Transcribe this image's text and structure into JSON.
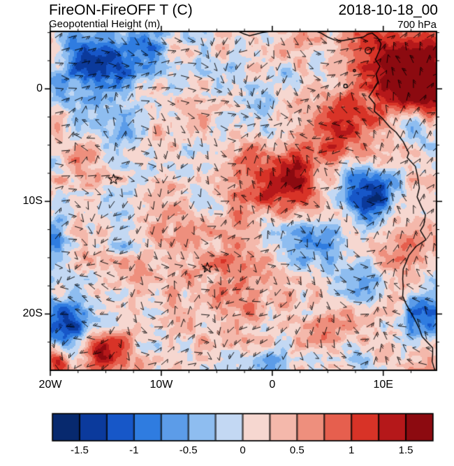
{
  "header": {
    "title_left": "FireON-FireOFF T (C)",
    "title_right": "2018-10-18_00",
    "subtitle_left": "Geopotential Height (m)",
    "subtitle_right": "700 hPa"
  },
  "axes": {
    "x_ticks": [
      {
        "label": "20W",
        "lon": -20
      },
      {
        "label": "10W",
        "lon": -10
      },
      {
        "label": "0",
        "lon": 0
      },
      {
        "label": "10E",
        "lon": 10
      }
    ],
    "y_ticks": [
      {
        "label": "0",
        "lat": 0
      },
      {
        "label": "10S",
        "lat": -10
      },
      {
        "label": "20S",
        "lat": -20
      }
    ]
  },
  "colorbar": {
    "tick_labels": [
      "-1.5",
      "-1",
      "-0.5",
      "0",
      "0.5",
      "1",
      "1.5"
    ],
    "levels": [
      -1.5,
      -1.25,
      -1,
      -0.75,
      -0.5,
      -0.25,
      0,
      0.25,
      0.5,
      0.75,
      1,
      1.25,
      1.5
    ],
    "colors": [
      "#07296e",
      "#0b3a9c",
      "#1757c8",
      "#2f7ce0",
      "#5c9ce8",
      "#8ebdf0",
      "#c3d8f3",
      "#f6d7d0",
      "#f4b8ab",
      "#ee8f7d",
      "#e65f4e",
      "#d83327",
      "#b5181a",
      "#8c0a10"
    ]
  },
  "markers": [
    {
      "symbol": "star",
      "lon": -14.3,
      "lat": -8.05
    },
    {
      "symbol": "star",
      "lon": -5.85,
      "lat": -15.9
    }
  ],
  "map": {
    "coastline_segments": [
      [
        [
          -3.1,
          5.12
        ],
        [
          -2.6,
          4.9
        ],
        [
          -2.05,
          4.72
        ],
        [
          -1.5,
          4.85
        ],
        [
          -0.9,
          5.0
        ],
        [
          -0.3,
          5.08
        ],
        [
          0.35,
          5.15
        ]
      ],
      [
        [
          3.9,
          5.12
        ],
        [
          4.4,
          4.95
        ],
        [
          5.0,
          4.6
        ],
        [
          5.6,
          4.35
        ],
        [
          6.3,
          4.28
        ],
        [
          7.0,
          4.4
        ],
        [
          7.6,
          4.52
        ],
        [
          8.2,
          4.6
        ],
        [
          8.6,
          4.85
        ],
        [
          9.0,
          4.95
        ],
        [
          9.5,
          4.55
        ],
        [
          9.8,
          4.0
        ],
        [
          9.65,
          3.4
        ],
        [
          9.3,
          2.6
        ],
        [
          9.7,
          2.0
        ],
        [
          9.35,
          1.3
        ],
        [
          9.55,
          0.6
        ],
        [
          9.3,
          0.2
        ],
        [
          8.9,
          -0.4
        ],
        [
          8.7,
          -0.7
        ],
        [
          9.25,
          -1.35
        ],
        [
          9.2,
          -2.0
        ],
        [
          9.9,
          -2.6
        ],
        [
          10.6,
          -3.4
        ],
        [
          11.15,
          -3.85
        ],
        [
          11.8,
          -4.7
        ],
        [
          12.3,
          -5.7
        ],
        [
          12.15,
          -6.1
        ],
        [
          12.9,
          -6.9
        ],
        [
          13.1,
          -7.8
        ],
        [
          13.25,
          -8.8
        ],
        [
          13.05,
          -9.6
        ],
        [
          13.45,
          -10.5
        ],
        [
          13.8,
          -11.2
        ],
        [
          13.65,
          -12.1
        ],
        [
          13.35,
          -12.6
        ],
        [
          13.85,
          -13.4
        ],
        [
          12.95,
          -14.0
        ],
        [
          12.3,
          -14.8
        ],
        [
          12.1,
          -15.3
        ],
        [
          11.8,
          -16.0
        ],
        [
          11.75,
          -16.9
        ],
        [
          11.8,
          -17.6
        ],
        [
          11.75,
          -18.4
        ],
        [
          12.05,
          -19.1
        ],
        [
          12.5,
          -19.9
        ],
        [
          12.9,
          -20.6
        ],
        [
          13.25,
          -21.3
        ],
        [
          13.5,
          -22.0
        ],
        [
          14.05,
          -22.6
        ],
        [
          14.45,
          -23.0
        ],
        [
          14.45,
          -23.6
        ],
        [
          14.4,
          -24.2
        ],
        [
          14.55,
          -24.7
        ],
        [
          14.7,
          -25.1
        ]
      ]
    ],
    "islands": [
      {
        "lon": 8.65,
        "lat": 3.4,
        "r": 0.28
      },
      {
        "lon": 7.4,
        "lat": 1.62,
        "r": 0.1
      },
      {
        "lon": 6.6,
        "lat": 0.25,
        "r": 0.16
      }
    ]
  },
  "chart_data": {
    "type": "heatmap",
    "title": "FireON-FireOFF T (C)",
    "overlay_label": "Geopotential Height (m)",
    "datetime": "2018-10-18_00",
    "pressure_level": "700 hPa",
    "units": "C",
    "lon_range": [
      -20,
      14.8
    ],
    "lat_range": [
      -25,
      5.1
    ],
    "x_tick_labels": [
      "20W",
      "10W",
      "0",
      "10E"
    ],
    "y_tick_labels": [
      "0",
      "10S",
      "20S"
    ],
    "contour_levels": [
      -1.5,
      -1.25,
      -1,
      -0.75,
      -0.5,
      -0.25,
      0,
      0.25,
      0.5,
      0.75,
      1,
      1.25,
      1.5
    ],
    "legend_position": "bottom",
    "overlays": [
      "wind-barbs",
      "coastline",
      "star-markers"
    ],
    "approx_anomaly_centers": [
      {
        "lon": 11.8,
        "lat": 2.8,
        "amp": 1.7,
        "r": 2.6
      },
      {
        "lon": 13.5,
        "lat": -0.5,
        "amp": 1.2,
        "r": 1.8
      },
      {
        "lon": 6.5,
        "lat": -3.2,
        "amp": 1.15,
        "r": 2.4
      },
      {
        "lon": 1.2,
        "lat": -8.2,
        "amp": 1.25,
        "r": 1.9
      },
      {
        "lon": -16.2,
        "lat": 1.8,
        "amp": -1.5,
        "r": 2.0
      },
      {
        "lon": -11.5,
        "lat": 4.2,
        "amp": -1.0,
        "r": 1.6
      },
      {
        "lon": 8.6,
        "lat": -9.3,
        "amp": -1.5,
        "r": 1.7
      },
      {
        "lon": 13.0,
        "lat": -3.5,
        "amp": -0.8,
        "r": 1.2
      },
      {
        "lon": -8.0,
        "lat": -16.0,
        "amp": 0.32,
        "r": 5.5
      },
      {
        "lon": 2.5,
        "lat": -13.5,
        "amp": -0.55,
        "r": 2.6
      },
      {
        "lon": -18.5,
        "lat": -21.0,
        "amp": -1.6,
        "r": 1.6
      },
      {
        "lon": -15.5,
        "lat": -23.5,
        "amp": 1.3,
        "r": 1.2
      },
      {
        "lon": -19.5,
        "lat": -24.5,
        "amp": 1.2,
        "r": 1.0
      },
      {
        "lon": 0.0,
        "lat": -24.5,
        "amp": -1.0,
        "r": 1.3
      },
      {
        "lon": 14.0,
        "lat": -20.0,
        "amp": -0.9,
        "r": 1.5
      },
      {
        "lon": -20.0,
        "lat": -13.0,
        "amp": -0.6,
        "r": 1.5
      }
    ]
  }
}
